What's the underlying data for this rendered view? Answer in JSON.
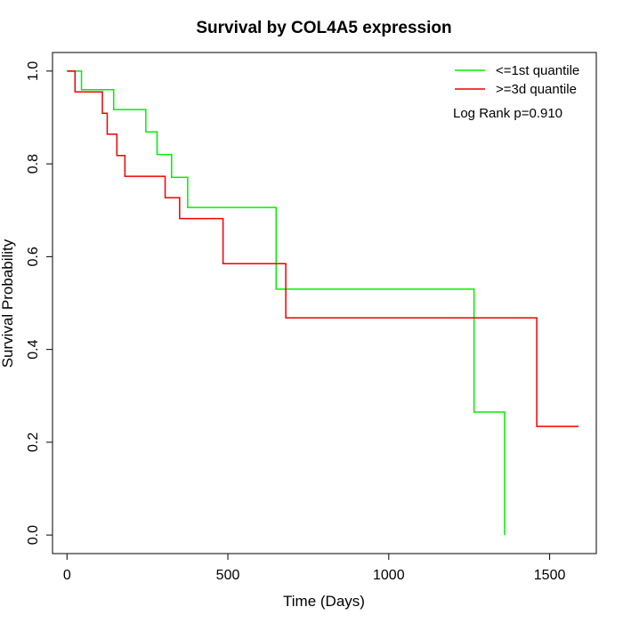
{
  "chart_data": {
    "type": "line",
    "title": "Survival by COL4A5 expression",
    "xlabel": "Time (Days)",
    "ylabel": "Survival Probability",
    "xlim": [
      -45,
      1645
    ],
    "ylim": [
      -0.04,
      1.04
    ],
    "x_ticks": [
      0,
      500,
      1000,
      1500
    ],
    "y_ticks": [
      0.0,
      0.2,
      0.4,
      0.6,
      0.8,
      1.0
    ],
    "x_tick_labels": [
      "0",
      "500",
      "1000",
      "1500"
    ],
    "y_tick_labels": [
      "0.0",
      "0.2",
      "0.4",
      "0.6",
      "0.8",
      "1.0"
    ],
    "grid": false,
    "legend_position": "top-right",
    "annotation": "Log Rank p=0.910",
    "series": [
      {
        "name": "<=1st quantile",
        "color": "#00ee00",
        "times": [
          0,
          45,
          145,
          245,
          280,
          325,
          375,
          650,
          1265,
          1360
        ],
        "surv": [
          1.0,
          0.96,
          0.917,
          0.869,
          0.82,
          0.771,
          0.706,
          0.53,
          0.265,
          0.0
        ]
      },
      {
        "name": ">=3d quantile",
        "color": "#ee0000",
        "times": [
          0,
          25,
          110,
          125,
          155,
          180,
          305,
          350,
          485,
          680,
          1460,
          1590
        ],
        "surv": [
          1.0,
          0.955,
          0.909,
          0.864,
          0.818,
          0.773,
          0.727,
          0.682,
          0.585,
          0.468,
          0.234,
          0.234
        ]
      }
    ]
  }
}
